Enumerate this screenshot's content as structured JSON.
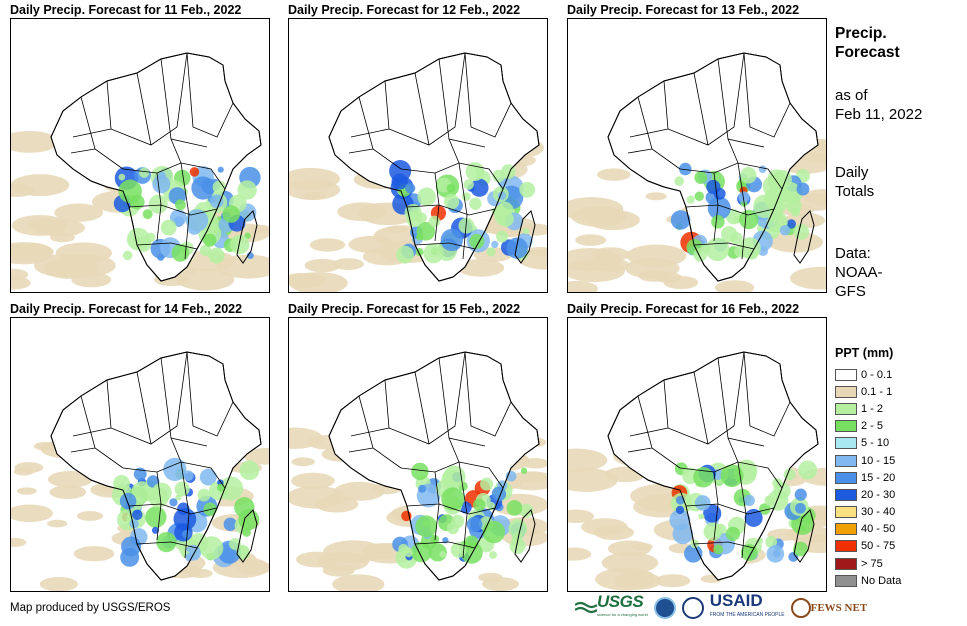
{
  "panels": [
    {
      "title": "Daily Precip. Forecast for 11 Feb., 2022"
    },
    {
      "title": "Daily Precip. Forecast for 12 Feb., 2022"
    },
    {
      "title": "Daily Precip. Forecast for 13 Feb., 2022"
    },
    {
      "title": "Daily Precip. Forecast for 14 Feb., 2022"
    },
    {
      "title": "Daily Precip. Forecast for 15 Feb., 2022"
    },
    {
      "title": "Daily Precip. Forecast for 16 Feb., 2022"
    }
  ],
  "sidebar": {
    "title_line1": "Precip.",
    "title_line2": "Forecast",
    "asof_line1": "as of",
    "asof_line2": "Feb 11, 2022",
    "totals_line1": "Daily",
    "totals_line2": "Totals",
    "source_line1": "Data:",
    "source_line2": "NOAA-",
    "source_line3": "GFS"
  },
  "legend": {
    "title": "PPT (mm)",
    "items": [
      {
        "label": "0 - 0.1",
        "color": "#ffffff"
      },
      {
        "label": "0.1 - 1",
        "color": "#e8d8b8"
      },
      {
        "label": "1 - 2",
        "color": "#b4f0a0"
      },
      {
        "label": "2 - 5",
        "color": "#78e060"
      },
      {
        "label": "5 - 10",
        "color": "#a8e8f0"
      },
      {
        "label": "10 - 15",
        "color": "#80b8f0"
      },
      {
        "label": "15 - 20",
        "color": "#4a90e8"
      },
      {
        "label": "20 - 30",
        "color": "#1c5ae0"
      },
      {
        "label": "30 - 40",
        "color": "#f8e080"
      },
      {
        "label": "40 - 50",
        "color": "#f0a000"
      },
      {
        "label": "50 - 75",
        "color": "#f03000"
      },
      {
        "label": "> 75",
        "color": "#a01818"
      },
      {
        "label": "No Data",
        "color": "#909090"
      }
    ]
  },
  "footer": {
    "credit": "Map produced by USGS/EROS",
    "logos": {
      "usgs": "USGS",
      "usgs_tagline": "science for a changing world",
      "usaid": "USAID",
      "usaid_tagline": "FROM THE AMERICAN PEOPLE",
      "fews": "FEWS NET"
    }
  }
}
